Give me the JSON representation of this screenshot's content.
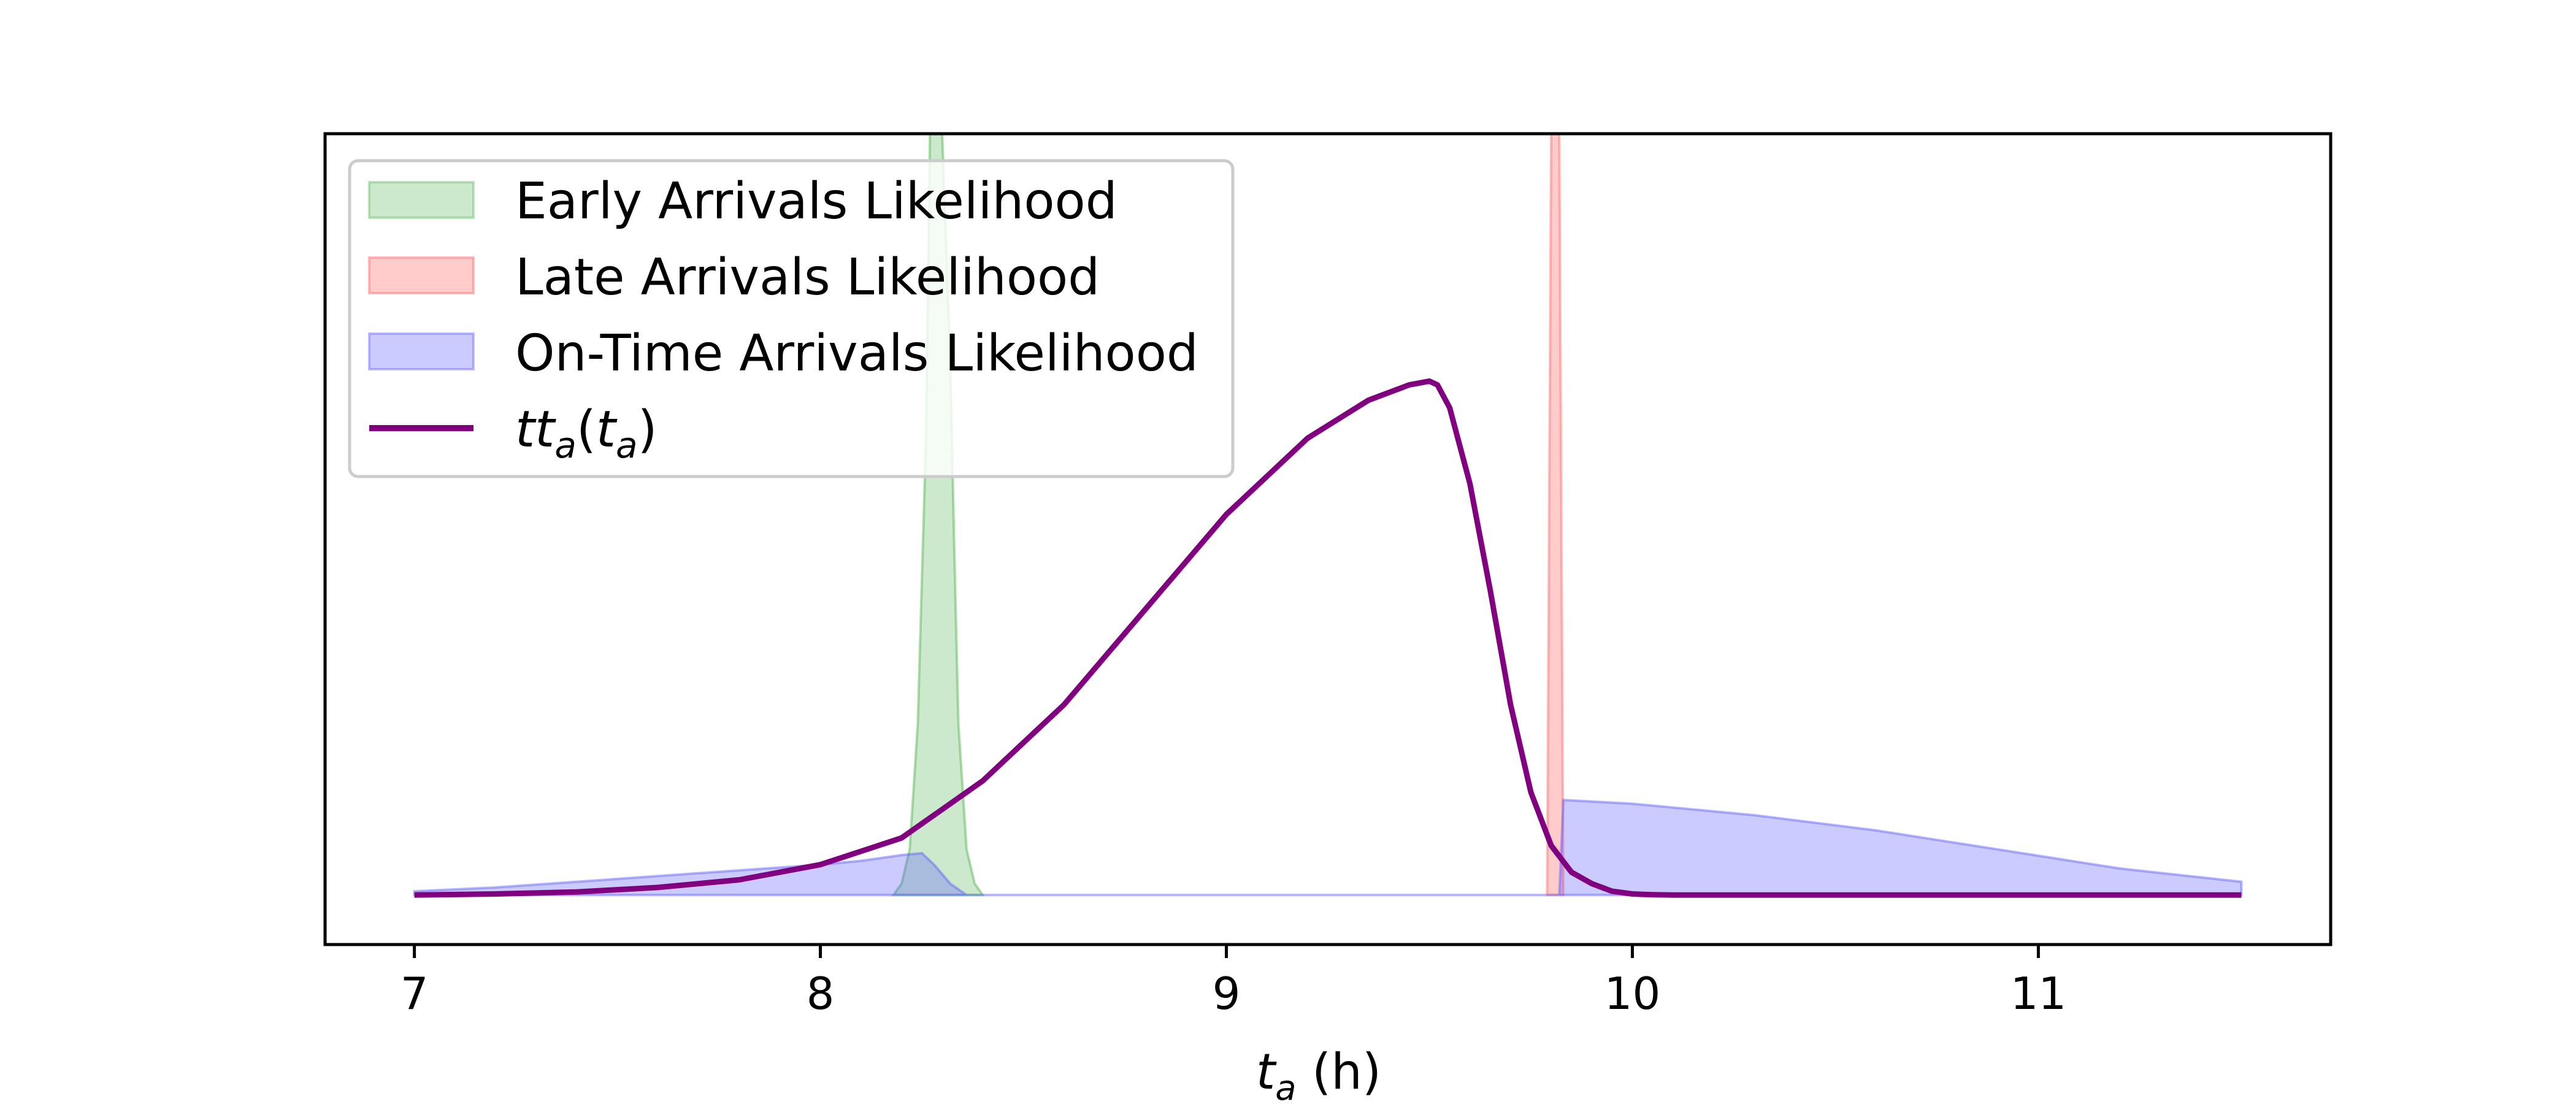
{
  "chart_data": {
    "type": "area",
    "title": "",
    "xlabel": "(h)",
    "xlabel_var": "t",
    "xlabel_sub": "a",
    "ylabel": "",
    "xlim": [
      6.78,
      11.72
    ],
    "ylim": [
      -0.13,
      2.0
    ],
    "xticks": [
      7,
      8,
      9,
      10,
      11
    ],
    "yticks_shown": false,
    "grid": false,
    "legend_placement": "top-left",
    "legend": [
      {
        "key": "early",
        "label": "Early Arrivals Likelihood",
        "kind": "patch",
        "color": "#4daf4a"
      },
      {
        "key": "late",
        "label": "Late Arrivals Likelihood",
        "kind": "patch",
        "color": "#ff6b6b"
      },
      {
        "key": "ontime",
        "label": "On-Time Arrivals Likelihood",
        "kind": "patch",
        "color": "#5c5cff"
      },
      {
        "key": "tt",
        "label_var": "tt",
        "label_sub": "a",
        "label_arg": "t",
        "label_arg_sub": "a",
        "kind": "line",
        "color": "#800080"
      }
    ],
    "series": [
      {
        "name": "Early Arrivals Likelihood",
        "kind": "fill",
        "color": "#4daf4a",
        "x": [
          8.18,
          8.2,
          8.22,
          8.24,
          8.26,
          8.27,
          8.28,
          8.3,
          8.32,
          8.33,
          8.34,
          8.36,
          8.38,
          8.4
        ],
        "y": [
          0.0,
          0.03,
          0.12,
          0.45,
          1.2,
          2.0,
          2.0,
          2.0,
          1.4,
          0.9,
          0.45,
          0.12,
          0.03,
          0.0
        ]
      },
      {
        "name": "Late Arrivals Likelihood",
        "kind": "fill",
        "color": "#ff6b6b",
        "x": [
          9.79,
          9.8,
          9.81,
          9.82,
          9.83
        ],
        "y": [
          0.0,
          2.0,
          2.0,
          2.0,
          0.0
        ]
      },
      {
        "name": "On-Time Arrivals Likelihood",
        "kind": "fill",
        "color": "#5c5cff",
        "x": [
          7.0,
          7.2,
          7.4,
          7.6,
          7.8,
          8.0,
          8.1,
          8.2,
          8.25,
          8.28,
          8.32,
          8.36,
          8.4,
          9.82,
          9.83,
          10.0,
          10.3,
          10.6,
          10.9,
          11.2,
          11.5
        ],
        "y": [
          0.01,
          0.02,
          0.035,
          0.05,
          0.065,
          0.08,
          0.09,
          0.105,
          0.11,
          0.08,
          0.03,
          0.0,
          0.0,
          0.0,
          0.25,
          0.24,
          0.21,
          0.17,
          0.12,
          0.07,
          0.035
        ]
      },
      {
        "name": "tt_a(t_a)",
        "kind": "line",
        "color": "#800080",
        "x": [
          7.0,
          7.2,
          7.4,
          7.6,
          7.8,
          8.0,
          8.2,
          8.4,
          8.6,
          8.8,
          9.0,
          9.2,
          9.35,
          9.45,
          9.5,
          9.52,
          9.55,
          9.6,
          9.65,
          9.7,
          9.75,
          9.8,
          9.85,
          9.9,
          9.95,
          10.0,
          10.05,
          10.1,
          10.5,
          11.0,
          11.5
        ],
        "y": [
          0.0,
          0.003,
          0.008,
          0.02,
          0.04,
          0.08,
          0.15,
          0.3,
          0.5,
          0.75,
          1.0,
          1.2,
          1.3,
          1.34,
          1.35,
          1.34,
          1.28,
          1.08,
          0.8,
          0.5,
          0.27,
          0.13,
          0.06,
          0.03,
          0.01,
          0.003,
          0.001,
          0.0,
          0.0,
          0.0,
          0.0
        ]
      }
    ]
  }
}
